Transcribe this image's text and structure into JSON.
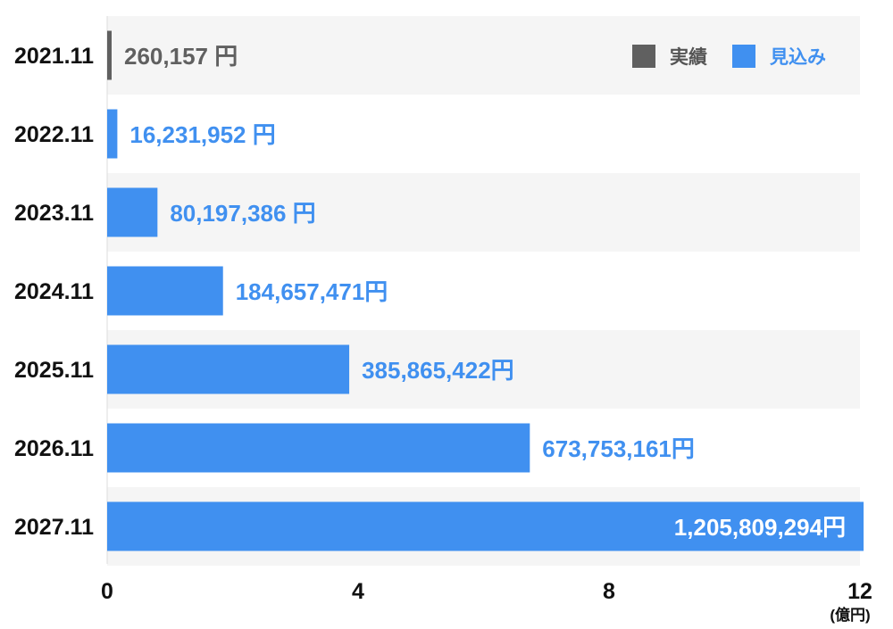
{
  "chart_data": {
    "type": "bar",
    "orientation": "horizontal",
    "unit": "(億円)",
    "categories": [
      "2021.11",
      "2022.11",
      "2023.11",
      "2024.11",
      "2025.11",
      "2026.11",
      "2027.11"
    ],
    "values": [
      260157,
      16231952,
      80197386,
      184657471,
      385865422,
      673753161,
      1205809294
    ],
    "value_labels": [
      "260,157 円",
      "16,231,952 円",
      "80,197,386 円",
      "184,657,471円",
      "385,865,422円",
      "673,753,161円",
      "1,205,809,294円"
    ],
    "bar_series": [
      "actual",
      "forecast",
      "forecast",
      "forecast",
      "forecast",
      "forecast",
      "forecast"
    ],
    "xaxis_ticks": [
      "0",
      "4",
      "8",
      "12"
    ],
    "xlim": [
      0,
      12
    ],
    "scale_divisor": 100000000,
    "legend": {
      "position": "top-right",
      "items": [
        {
          "key": "actual",
          "label": "実績",
          "color": "#606060"
        },
        {
          "key": "forecast",
          "label": "見込み",
          "color": "#4090f0"
        }
      ]
    },
    "colors": {
      "actual": "#606060",
      "forecast": "#4090f0",
      "band": "#f5f5f5",
      "label_on_bar": "#ffffff"
    }
  }
}
